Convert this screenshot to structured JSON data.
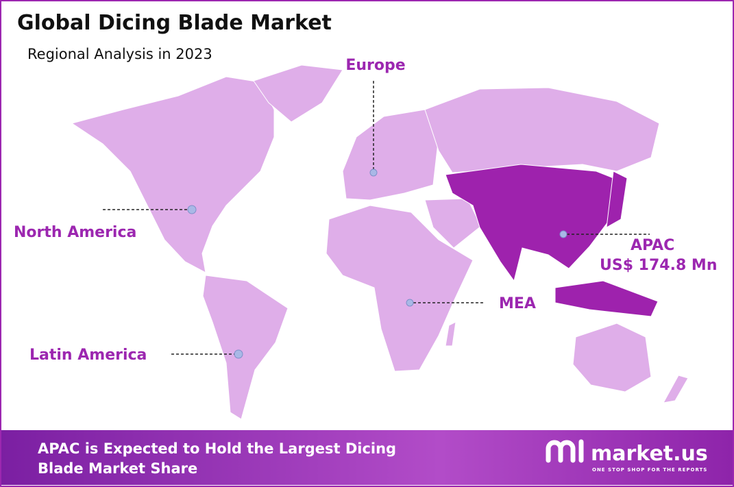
{
  "header": {
    "title": "Global Dicing Blade Market",
    "subtitle": "Regional Analysis in 2023"
  },
  "regions": [
    {
      "label": "Europe"
    },
    {
      "label": "North America"
    },
    {
      "label": "Latin America"
    },
    {
      "label": "MEA"
    },
    {
      "label": "APAC",
      "value": "US$ 174.8 Mn"
    }
  ],
  "footer": {
    "headline_lines": [
      "APAC is Expected to Hold the Largest Dicing",
      "Blade Market Share"
    ],
    "brand": "market.us",
    "tagline": "ONE STOP SHOP FOR THE REPORTS"
  }
}
